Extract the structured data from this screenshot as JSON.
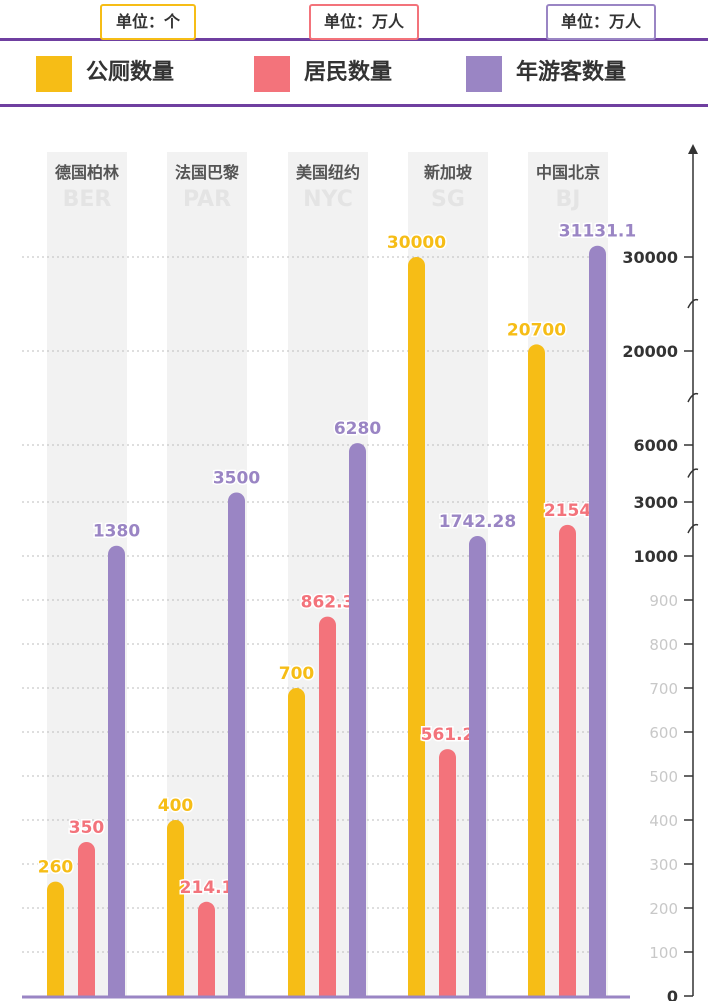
{
  "legend": {
    "items": [
      {
        "label": "公厕数量",
        "unit": "单位：个",
        "color": "#f6bd16"
      },
      {
        "label": "居民数量",
        "unit": "单位：万人",
        "color": "#f3737b"
      },
      {
        "label": "年游客数量",
        "unit": "单位：万人",
        "color": "#9a85c4"
      }
    ]
  },
  "chart_data": {
    "type": "bar",
    "categories": [
      "德国柏林",
      "法国巴黎",
      "美国纽约",
      "新加坡",
      "中国北京"
    ],
    "category_codes": [
      "BER",
      "PAR",
      "NYC",
      "SG",
      "BJ"
    ],
    "series": [
      {
        "name": "公厕数量",
        "values": [
          260,
          400,
          700,
          30000,
          20700
        ]
      },
      {
        "name": "居民数量",
        "values": [
          350,
          214.1,
          862.3,
          561.2,
          2154
        ]
      },
      {
        "name": "年游客数量",
        "values": [
          1380,
          3500,
          6280,
          1742.28,
          31131.1
        ]
      }
    ],
    "value_labels": [
      [
        "260",
        "400",
        "700",
        "30000",
        "20700"
      ],
      [
        "350",
        "214.1",
        "862.3",
        "561.2",
        "2154"
      ],
      [
        "1380",
        "3500",
        "6280",
        "1742.28",
        "31131.1"
      ]
    ],
    "y_axis": {
      "scale": "broken",
      "ticks": [
        "0",
        "100",
        "200",
        "300",
        "400",
        "500",
        "600",
        "700",
        "800",
        "900",
        "1000",
        "3000",
        "6000",
        "20000",
        "30000"
      ],
      "bold_ticks": [
        "0",
        "1000",
        "3000",
        "6000",
        "20000",
        "30000"
      ]
    },
    "grid": true
  }
}
